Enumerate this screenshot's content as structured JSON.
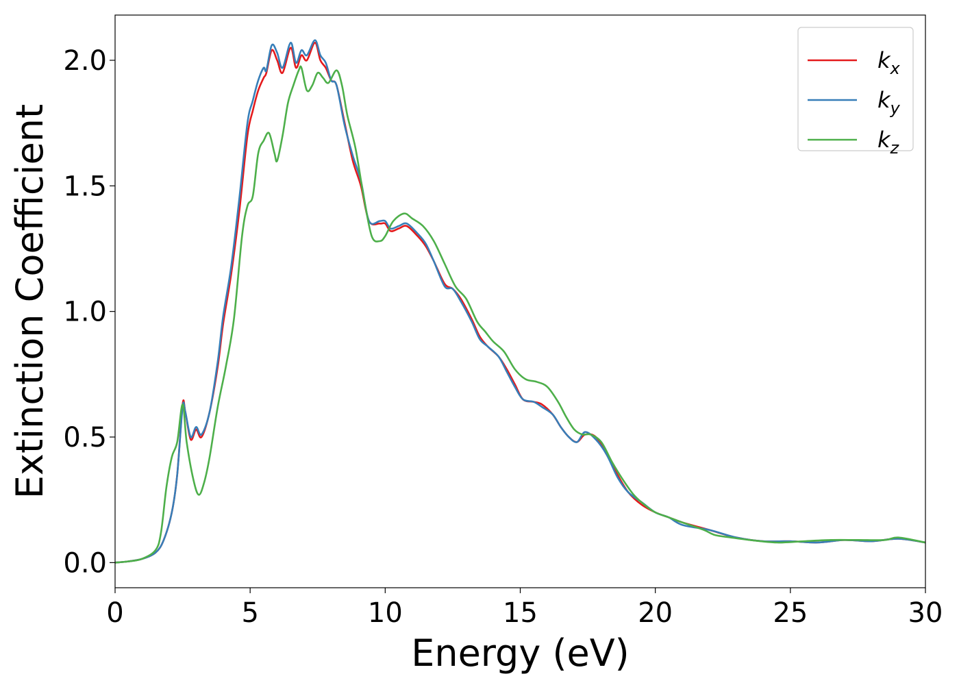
{
  "chart_data": {
    "type": "line",
    "title": "",
    "xlabel": "Energy (eV)",
    "ylabel": "Extinction Coefficient",
    "xlim": [
      0,
      30
    ],
    "ylim": [
      -0.1,
      2.18
    ],
    "xticks": [
      0,
      5,
      10,
      15,
      20,
      25,
      30
    ],
    "xtick_labels": [
      "0",
      "5",
      "10",
      "15",
      "20",
      "25",
      "30"
    ],
    "yticks": [
      0.0,
      0.5,
      1.0,
      1.5,
      2.0
    ],
    "ytick_labels": [
      "0.0",
      "0.5",
      "1.0",
      "1.5",
      "2.0"
    ],
    "grid": false,
    "legend_placement": "top-right",
    "series": [
      {
        "name": "k_x",
        "legend_base": "k",
        "legend_sub": "x",
        "color": "#e41a1c",
        "points": [
          [
            0,
            0
          ],
          [
            0.5,
            0.005
          ],
          [
            1,
            0.015
          ],
          [
            1.5,
            0.04
          ],
          [
            1.8,
            0.09
          ],
          [
            2.1,
            0.2
          ],
          [
            2.3,
            0.35
          ],
          [
            2.5,
            0.63
          ],
          [
            2.6,
            0.6
          ],
          [
            2.8,
            0.49
          ],
          [
            3.0,
            0.53
          ],
          [
            3.2,
            0.5
          ],
          [
            3.5,
            0.6
          ],
          [
            3.8,
            0.78
          ],
          [
            4.0,
            0.95
          ],
          [
            4.3,
            1.15
          ],
          [
            4.6,
            1.4
          ],
          [
            4.9,
            1.7
          ],
          [
            5.1,
            1.8
          ],
          [
            5.3,
            1.88
          ],
          [
            5.5,
            1.93
          ],
          [
            5.6,
            1.95
          ],
          [
            5.8,
            2.04
          ],
          [
            6.0,
            2.0
          ],
          [
            6.2,
            1.95
          ],
          [
            6.5,
            2.05
          ],
          [
            6.7,
            1.97
          ],
          [
            6.9,
            2.02
          ],
          [
            7.1,
            2.0
          ],
          [
            7.4,
            2.07
          ],
          [
            7.6,
            2.0
          ],
          [
            7.8,
            1.97
          ],
          [
            8.0,
            1.92
          ],
          [
            8.2,
            1.9
          ],
          [
            8.5,
            1.75
          ],
          [
            8.8,
            1.6
          ],
          [
            9.1,
            1.5
          ],
          [
            9.4,
            1.36
          ],
          [
            9.8,
            1.35
          ],
          [
            10.0,
            1.35
          ],
          [
            10.2,
            1.32
          ],
          [
            10.5,
            1.33
          ],
          [
            10.8,
            1.34
          ],
          [
            11.2,
            1.3
          ],
          [
            11.5,
            1.26
          ],
          [
            11.8,
            1.2
          ],
          [
            12.2,
            1.11
          ],
          [
            12.5,
            1.09
          ],
          [
            12.8,
            1.05
          ],
          [
            13.2,
            0.97
          ],
          [
            13.5,
            0.9
          ],
          [
            13.8,
            0.86
          ],
          [
            14.2,
            0.82
          ],
          [
            14.5,
            0.77
          ],
          [
            14.8,
            0.71
          ],
          [
            15.1,
            0.65
          ],
          [
            15.5,
            0.64
          ],
          [
            15.8,
            0.63
          ],
          [
            16.2,
            0.59
          ],
          [
            16.5,
            0.54
          ],
          [
            16.8,
            0.5
          ],
          [
            17.1,
            0.48
          ],
          [
            17.4,
            0.51
          ],
          [
            17.8,
            0.5
          ],
          [
            18.2,
            0.43
          ],
          [
            18.6,
            0.35
          ],
          [
            19.0,
            0.28
          ],
          [
            19.5,
            0.23
          ],
          [
            20.0,
            0.2
          ],
          [
            20.5,
            0.18
          ],
          [
            21.0,
            0.16
          ],
          [
            22.0,
            0.13
          ],
          [
            23.0,
            0.1
          ],
          [
            24.0,
            0.085
          ],
          [
            25.0,
            0.085
          ],
          [
            26.0,
            0.08
          ],
          [
            27.0,
            0.09
          ],
          [
            28.0,
            0.085
          ],
          [
            29.0,
            0.095
          ],
          [
            30.0,
            0.08
          ]
        ]
      },
      {
        "name": "k_y",
        "legend_base": "k",
        "legend_sub": "y",
        "color": "#377eb8",
        "points": [
          [
            0,
            0
          ],
          [
            0.5,
            0.005
          ],
          [
            1,
            0.015
          ],
          [
            1.5,
            0.04
          ],
          [
            1.8,
            0.09
          ],
          [
            2.1,
            0.2
          ],
          [
            2.3,
            0.35
          ],
          [
            2.5,
            0.62
          ],
          [
            2.6,
            0.6
          ],
          [
            2.8,
            0.5
          ],
          [
            3.0,
            0.54
          ],
          [
            3.2,
            0.51
          ],
          [
            3.5,
            0.6
          ],
          [
            3.8,
            0.8
          ],
          [
            4.0,
            0.98
          ],
          [
            4.3,
            1.18
          ],
          [
            4.6,
            1.45
          ],
          [
            4.9,
            1.75
          ],
          [
            5.1,
            1.84
          ],
          [
            5.3,
            1.92
          ],
          [
            5.5,
            1.97
          ],
          [
            5.6,
            1.96
          ],
          [
            5.8,
            2.06
          ],
          [
            6.0,
            2.03
          ],
          [
            6.2,
            1.97
          ],
          [
            6.5,
            2.07
          ],
          [
            6.7,
            1.99
          ],
          [
            6.9,
            2.04
          ],
          [
            7.1,
            2.02
          ],
          [
            7.4,
            2.08
          ],
          [
            7.6,
            2.02
          ],
          [
            7.8,
            1.99
          ],
          [
            8.0,
            1.92
          ],
          [
            8.2,
            1.9
          ],
          [
            8.5,
            1.74
          ],
          [
            8.8,
            1.62
          ],
          [
            9.1,
            1.52
          ],
          [
            9.4,
            1.36
          ],
          [
            9.8,
            1.36
          ],
          [
            10.0,
            1.36
          ],
          [
            10.2,
            1.33
          ],
          [
            10.5,
            1.34
          ],
          [
            10.8,
            1.35
          ],
          [
            11.2,
            1.31
          ],
          [
            11.5,
            1.27
          ],
          [
            11.8,
            1.2
          ],
          [
            12.2,
            1.1
          ],
          [
            12.5,
            1.09
          ],
          [
            12.8,
            1.04
          ],
          [
            13.2,
            0.96
          ],
          [
            13.5,
            0.89
          ],
          [
            13.8,
            0.86
          ],
          [
            14.2,
            0.82
          ],
          [
            14.5,
            0.76
          ],
          [
            14.8,
            0.7
          ],
          [
            15.1,
            0.65
          ],
          [
            15.5,
            0.64
          ],
          [
            15.8,
            0.62
          ],
          [
            16.2,
            0.59
          ],
          [
            16.5,
            0.54
          ],
          [
            16.8,
            0.5
          ],
          [
            17.1,
            0.48
          ],
          [
            17.4,
            0.52
          ],
          [
            17.8,
            0.49
          ],
          [
            18.2,
            0.43
          ],
          [
            18.6,
            0.34
          ],
          [
            19.0,
            0.28
          ],
          [
            19.5,
            0.24
          ],
          [
            20.0,
            0.2
          ],
          [
            20.5,
            0.18
          ],
          [
            21.0,
            0.15
          ],
          [
            22.0,
            0.13
          ],
          [
            23.0,
            0.1
          ],
          [
            24.0,
            0.085
          ],
          [
            25.0,
            0.085
          ],
          [
            26.0,
            0.08
          ],
          [
            27.0,
            0.09
          ],
          [
            28.0,
            0.085
          ],
          [
            29.0,
            0.095
          ],
          [
            30.0,
            0.08
          ]
        ]
      },
      {
        "name": "k_z",
        "legend_base": "k",
        "legend_sub": "z",
        "color": "#4daf4a",
        "points": [
          [
            0,
            0
          ],
          [
            0.5,
            0.005
          ],
          [
            1,
            0.015
          ],
          [
            1.5,
            0.05
          ],
          [
            1.7,
            0.12
          ],
          [
            1.9,
            0.3
          ],
          [
            2.1,
            0.42
          ],
          [
            2.3,
            0.48
          ],
          [
            2.5,
            0.63
          ],
          [
            2.65,
            0.48
          ],
          [
            2.9,
            0.33
          ],
          [
            3.1,
            0.27
          ],
          [
            3.3,
            0.32
          ],
          [
            3.5,
            0.42
          ],
          [
            3.8,
            0.62
          ],
          [
            4.1,
            0.78
          ],
          [
            4.4,
            0.97
          ],
          [
            4.7,
            1.3
          ],
          [
            4.9,
            1.42
          ],
          [
            5.1,
            1.46
          ],
          [
            5.3,
            1.63
          ],
          [
            5.5,
            1.68
          ],
          [
            5.7,
            1.71
          ],
          [
            5.9,
            1.63
          ],
          [
            6.0,
            1.6
          ],
          [
            6.2,
            1.7
          ],
          [
            6.4,
            1.83
          ],
          [
            6.6,
            1.9
          ],
          [
            6.8,
            1.96
          ],
          [
            6.9,
            1.97
          ],
          [
            7.1,
            1.88
          ],
          [
            7.3,
            1.9
          ],
          [
            7.5,
            1.95
          ],
          [
            7.7,
            1.93
          ],
          [
            7.9,
            1.91
          ],
          [
            8.2,
            1.96
          ],
          [
            8.4,
            1.9
          ],
          [
            8.6,
            1.78
          ],
          [
            8.9,
            1.65
          ],
          [
            9.2,
            1.46
          ],
          [
            9.5,
            1.3
          ],
          [
            9.8,
            1.28
          ],
          [
            10.0,
            1.3
          ],
          [
            10.3,
            1.36
          ],
          [
            10.7,
            1.39
          ],
          [
            11.0,
            1.37
          ],
          [
            11.4,
            1.34
          ],
          [
            11.8,
            1.28
          ],
          [
            12.2,
            1.19
          ],
          [
            12.6,
            1.1
          ],
          [
            13.0,
            1.05
          ],
          [
            13.4,
            0.96
          ],
          [
            13.7,
            0.92
          ],
          [
            14.0,
            0.88
          ],
          [
            14.4,
            0.84
          ],
          [
            14.8,
            0.77
          ],
          [
            15.2,
            0.73
          ],
          [
            15.6,
            0.72
          ],
          [
            16.0,
            0.7
          ],
          [
            16.4,
            0.64
          ],
          [
            16.7,
            0.58
          ],
          [
            17.0,
            0.53
          ],
          [
            17.3,
            0.51
          ],
          [
            17.6,
            0.51
          ],
          [
            18.0,
            0.48
          ],
          [
            18.4,
            0.4
          ],
          [
            18.8,
            0.33
          ],
          [
            19.2,
            0.27
          ],
          [
            19.6,
            0.23
          ],
          [
            20.0,
            0.2
          ],
          [
            20.5,
            0.18
          ],
          [
            21.0,
            0.16
          ],
          [
            21.8,
            0.13
          ],
          [
            22.2,
            0.11
          ],
          [
            22.8,
            0.1
          ],
          [
            23.5,
            0.09
          ],
          [
            24.5,
            0.08
          ],
          [
            25.5,
            0.085
          ],
          [
            26.5,
            0.09
          ],
          [
            27.5,
            0.09
          ],
          [
            28.5,
            0.09
          ],
          [
            29.0,
            0.1
          ],
          [
            30.0,
            0.08
          ]
        ]
      }
    ]
  }
}
